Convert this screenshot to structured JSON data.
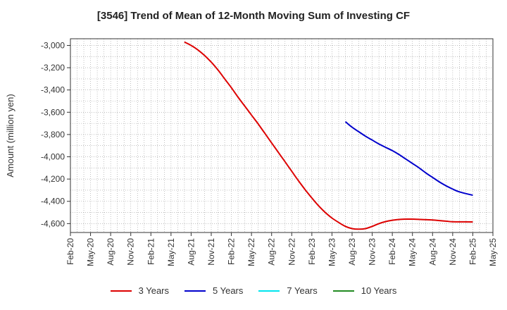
{
  "chart_data": {
    "type": "line",
    "title": "[3546]  Trend of Mean of 12-Month Moving Sum of Investing CF",
    "xlabel": "",
    "ylabel": "Amount (million yen)",
    "ylim": [
      -4680,
      -2940
    ],
    "yticks": [
      -3000,
      -3200,
      -3400,
      -3600,
      -3800,
      -4000,
      -4200,
      -4400,
      -4600
    ],
    "ytick_labels": [
      "-3,000",
      "-3,200",
      "-3,400",
      "-3,600",
      "-3,800",
      "-4,000",
      "-4,200",
      "-4,400",
      "-4,600"
    ],
    "x_ticks": [
      "Feb-20",
      "May-20",
      "Aug-20",
      "Nov-20",
      "Feb-21",
      "May-21",
      "Aug-21",
      "Nov-21",
      "Feb-22",
      "May-22",
      "Aug-22",
      "Nov-22",
      "Feb-23",
      "May-23",
      "Aug-23",
      "Nov-23",
      "Feb-24",
      "May-24",
      "Aug-24",
      "Nov-24",
      "Feb-25",
      "May-25"
    ],
    "grid": true,
    "legend_position": "bottom",
    "series": [
      {
        "name": "3 Years",
        "color": "#dd0000",
        "points": [
          [
            "Jul-21",
            -2970
          ],
          [
            "Aug-21",
            -3000
          ],
          [
            "Sep-21",
            -3040
          ],
          [
            "Oct-21",
            -3090
          ],
          [
            "Nov-21",
            -3150
          ],
          [
            "Dec-21",
            -3220
          ],
          [
            "Jan-22",
            -3300
          ],
          [
            "Feb-22",
            -3380
          ],
          [
            "Mar-22",
            -3465
          ],
          [
            "Apr-22",
            -3545
          ],
          [
            "May-22",
            -3625
          ],
          [
            "Jun-22",
            -3705
          ],
          [
            "Jul-22",
            -3790
          ],
          [
            "Aug-22",
            -3875
          ],
          [
            "Sep-22",
            -3960
          ],
          [
            "Oct-22",
            -4045
          ],
          [
            "Nov-22",
            -4130
          ],
          [
            "Dec-22",
            -4215
          ],
          [
            "Jan-23",
            -4295
          ],
          [
            "Feb-23",
            -4370
          ],
          [
            "Mar-23",
            -4440
          ],
          [
            "Apr-23",
            -4500
          ],
          [
            "May-23",
            -4550
          ],
          [
            "Jun-23",
            -4590
          ],
          [
            "Jul-23",
            -4625
          ],
          [
            "Aug-23",
            -4645
          ],
          [
            "Sep-23",
            -4650
          ],
          [
            "Oct-23",
            -4645
          ],
          [
            "Nov-23",
            -4625
          ],
          [
            "Dec-23",
            -4600
          ],
          [
            "Jan-24",
            -4582
          ],
          [
            "Feb-24",
            -4570
          ],
          [
            "Mar-24",
            -4563
          ],
          [
            "Apr-24",
            -4560
          ],
          [
            "May-24",
            -4560
          ],
          [
            "Jun-24",
            -4562
          ],
          [
            "Jul-24",
            -4565
          ],
          [
            "Aug-24",
            -4568
          ],
          [
            "Sep-24",
            -4573
          ],
          [
            "Oct-24",
            -4578
          ],
          [
            "Nov-24",
            -4583
          ],
          [
            "Feb-25",
            -4585
          ]
        ]
      },
      {
        "name": "5 Years",
        "color": "#0000cc",
        "points": [
          [
            "Jul-23",
            -3685
          ],
          [
            "Aug-23",
            -3735
          ],
          [
            "Sep-23",
            -3775
          ],
          [
            "Oct-23",
            -3815
          ],
          [
            "Nov-23",
            -3850
          ],
          [
            "Dec-23",
            -3885
          ],
          [
            "Jan-24",
            -3915
          ],
          [
            "Feb-24",
            -3945
          ],
          [
            "Mar-24",
            -3980
          ],
          [
            "Apr-24",
            -4020
          ],
          [
            "May-24",
            -4060
          ],
          [
            "Jun-24",
            -4100
          ],
          [
            "Jul-24",
            -4145
          ],
          [
            "Aug-24",
            -4185
          ],
          [
            "Sep-24",
            -4225
          ],
          [
            "Oct-24",
            -4260
          ],
          [
            "Nov-24",
            -4290
          ],
          [
            "Dec-24",
            -4315
          ],
          [
            "Feb-25",
            -4345
          ]
        ]
      },
      {
        "name": "7 Years",
        "color": "#00e5ee",
        "points": []
      },
      {
        "name": "10 Years",
        "color": "#228b22",
        "points": []
      }
    ]
  }
}
